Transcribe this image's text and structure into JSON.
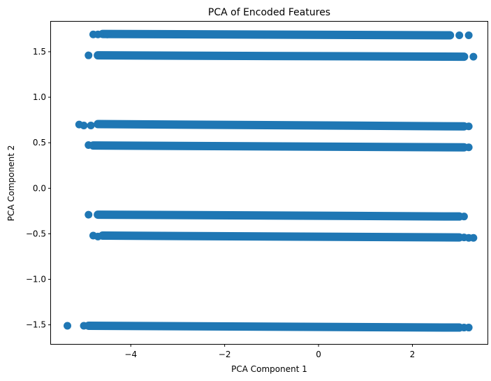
{
  "chart_data": {
    "type": "scatter",
    "title": "PCA of Encoded Features",
    "xlabel": "PCA Component 1",
    "ylabel": "PCA Component 2",
    "xlim": [
      -5.7,
      3.6
    ],
    "ylim": [
      -1.71,
      1.83
    ],
    "xticks": [
      {
        "value": -4,
        "label": "−4"
      },
      {
        "value": -2,
        "label": "−2"
      },
      {
        "value": 0,
        "label": "0"
      },
      {
        "value": 2,
        "label": "2"
      }
    ],
    "yticks": [
      {
        "value": -1.5,
        "label": "−1.5"
      },
      {
        "value": -1.0,
        "label": "−1.0"
      },
      {
        "value": -0.5,
        "label": "−0.5"
      },
      {
        "value": 0.0,
        "label": "0.0"
      },
      {
        "value": 0.5,
        "label": "0.5"
      },
      {
        "value": 1.0,
        "label": "1.0"
      },
      {
        "value": 1.5,
        "label": "1.5"
      }
    ],
    "grid": false,
    "marker_color": "#1f77b4",
    "clusters": [
      {
        "x_start": -4.6,
        "x_end": 2.8,
        "y_start": 1.695,
        "y_end": 1.68,
        "outliers": [
          [
            -4.8,
            1.69
          ],
          [
            -4.7,
            1.69
          ],
          [
            -4.5,
            1.69
          ],
          [
            3.0,
            1.68
          ],
          [
            3.2,
            1.68
          ]
        ]
      },
      {
        "x_start": -4.7,
        "x_end": 3.1,
        "y_start": 1.46,
        "y_end": 1.445,
        "outliers": [
          [
            -4.9,
            1.46
          ],
          [
            3.3,
            1.445
          ]
        ]
      },
      {
        "x_start": -4.7,
        "x_end": 3.1,
        "y_start": 0.705,
        "y_end": 0.68,
        "outliers": [
          [
            -5.1,
            0.7
          ],
          [
            -5.0,
            0.69
          ],
          [
            -4.85,
            0.69
          ],
          [
            3.2,
            0.68
          ]
        ]
      },
      {
        "x_start": -4.8,
        "x_end": 3.1,
        "y_start": 0.47,
        "y_end": 0.45,
        "outliers": [
          [
            -4.9,
            0.475
          ],
          [
            3.2,
            0.45
          ]
        ]
      },
      {
        "x_start": -4.7,
        "x_end": 3.0,
        "y_start": -0.29,
        "y_end": -0.31,
        "outliers": [
          [
            -4.9,
            -0.29
          ],
          [
            3.1,
            -0.31
          ]
        ]
      },
      {
        "x_start": -4.6,
        "x_end": 3.0,
        "y_start": -0.52,
        "y_end": -0.54,
        "outliers": [
          [
            -4.8,
            -0.52
          ],
          [
            -4.7,
            -0.53
          ],
          [
            3.1,
            -0.54
          ],
          [
            3.2,
            -0.545
          ],
          [
            3.3,
            -0.545
          ]
        ]
      },
      {
        "x_start": -4.9,
        "x_end": 3.0,
        "y_start": -1.51,
        "y_end": -1.53,
        "outliers": [
          [
            -5.35,
            -1.51
          ],
          [
            -5.0,
            -1.51
          ],
          [
            3.1,
            -1.53
          ],
          [
            3.2,
            -1.53
          ]
        ]
      }
    ]
  }
}
